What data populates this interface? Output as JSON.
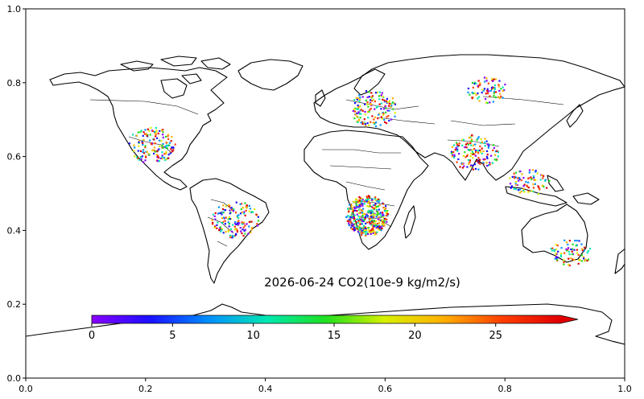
{
  "chart_data": {
    "type": "scatter",
    "title": "2026-06-24 CO2(10e-9 kg/m2/s)",
    "xlabel": "",
    "ylabel": "",
    "xlim": [
      0.0,
      1.0
    ],
    "ylim": [
      0.0,
      1.0
    ],
    "x_ticks": [
      "0.0",
      "0.2",
      "0.4",
      "0.6",
      "0.8",
      "1.0"
    ],
    "y_ticks": [
      "0.0",
      "0.2",
      "0.4",
      "0.6",
      "0.8",
      "1.0"
    ],
    "grid": false,
    "map": "world coastlines and country borders",
    "colormap": "gist_rainbow",
    "colorbar": {
      "orientation": "horizontal",
      "min": 0,
      "max": 29,
      "extend": "max",
      "ticks": [
        "0",
        "5",
        "10",
        "15",
        "20",
        "25"
      ],
      "colors": [
        "#8a00ff",
        "#1a10ff",
        "#0090ff",
        "#00e8b0",
        "#20e020",
        "#d8f000",
        "#ffb000",
        "#ff4000",
        "#e00000"
      ]
    },
    "point_clusters": [
      {
        "region": "Central-southern Africa",
        "x": 0.57,
        "y": 0.44,
        "density": "very high"
      },
      {
        "region": "Eastern United States",
        "x": 0.21,
        "y": 0.63,
        "density": "high"
      },
      {
        "region": "Brazil",
        "x": 0.35,
        "y": 0.43,
        "density": "high"
      },
      {
        "region": "Europe",
        "x": 0.58,
        "y": 0.73,
        "density": "high"
      },
      {
        "region": "India",
        "x": 0.75,
        "y": 0.61,
        "density": "high"
      },
      {
        "region": "Siberia",
        "x": 0.77,
        "y": 0.78,
        "density": "medium"
      },
      {
        "region": "Eastern Australia",
        "x": 0.91,
        "y": 0.34,
        "density": "medium"
      },
      {
        "region": "Southeast Asia",
        "x": 0.84,
        "y": 0.53,
        "density": "medium"
      }
    ]
  }
}
